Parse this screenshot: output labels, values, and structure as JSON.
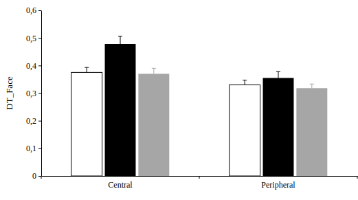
{
  "chart_data": {
    "type": "bar",
    "y_label": "DT_Face",
    "categories": [
      "Central",
      "Peripheral"
    ],
    "series": [
      {
        "color": "#ffffff",
        "values": [
          0.375,
          0.33
        ],
        "errors": [
          0.018,
          0.017
        ]
      },
      {
        "color": "#000000",
        "values": [
          0.478,
          0.355
        ],
        "errors": [
          0.028,
          0.023
        ]
      },
      {
        "color": "#a6a6a6",
        "values": [
          0.37,
          0.318
        ],
        "errors": [
          0.02,
          0.015
        ]
      }
    ],
    "ylim": [
      0,
      0.6
    ],
    "yticks": [
      0,
      {
        "value": 0.1,
        "label": "0,1"
      },
      {
        "value": 0.2,
        "label": "0,2"
      },
      {
        "value": 0.3,
        "label": "0,3"
      },
      {
        "value": 0.4,
        "label": "0,4"
      },
      {
        "value": 0.5,
        "label": "0,5"
      },
      {
        "value": 0.6,
        "label": "0,6"
      }
    ],
    "grid": false
  }
}
